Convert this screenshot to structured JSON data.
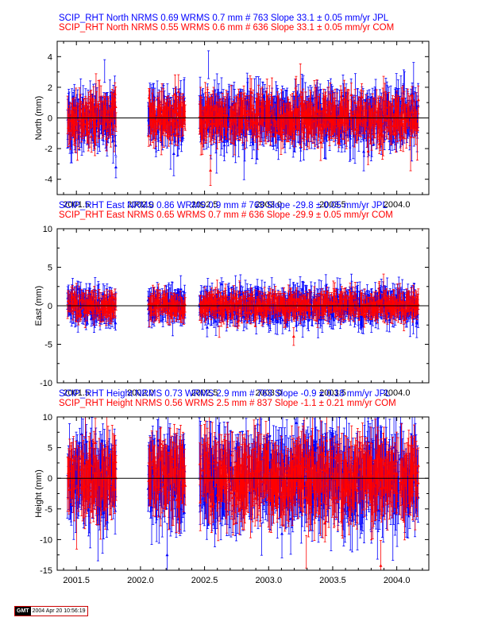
{
  "chart_data": [
    {
      "type": "scatter",
      "ylabel": "North (mm)",
      "xlim": [
        2001.35,
        2004.25
      ],
      "ylim": [
        -5,
        5
      ],
      "xticks": [
        2001.5,
        2002.0,
        2002.5,
        2003.0,
        2003.5,
        2004.0
      ],
      "xtick_labels": [
        "2001.5",
        "2002.0",
        "2002.5",
        "2003.0",
        "2003.5",
        "2004.0"
      ],
      "yticks": [
        -4,
        -2,
        0,
        2,
        4
      ],
      "ytick_labels": [
        "-4",
        "-2",
        "0",
        "2",
        "4"
      ],
      "series": [
        {
          "title": "SCIP_RHT North NRMS 0.69 WRMS  0.7 mm # 763 Slope   33.1 ±  0.05 mm/yr JPL",
          "color": "#0000ff",
          "nrms": 0.69,
          "wrms_mm": 0.7,
          "n": 763,
          "slope_mm_yr": 33.1,
          "slope_sigma": 0.05,
          "spread_mm": 0.7
        },
        {
          "title": "SCIP_RHT North NRMS 0.55 WRMS  0.6 mm # 636 Slope   33.1 ±  0.05 mm/yr COM",
          "color": "#ff0000",
          "nrms": 0.55,
          "wrms_mm": 0.6,
          "n": 636,
          "slope_mm_yr": 33.1,
          "slope_sigma": 0.05,
          "spread_mm": 0.6
        }
      ]
    },
    {
      "type": "scatter",
      "ylabel": "East (mm)",
      "xlim": [
        2001.35,
        2004.25
      ],
      "ylim": [
        -10,
        10
      ],
      "xticks": [
        2001.5,
        2002.0,
        2002.5,
        2003.0,
        2003.5,
        2004.0
      ],
      "xtick_labels": [
        "2001.5",
        "2002.0",
        "2002.5",
        "2003.0",
        "2003.5",
        "2004.0"
      ],
      "yticks": [
        -10,
        -5,
        0,
        5,
        10
      ],
      "ytick_labels": [
        "-10",
        "-5",
        "0",
        "5",
        "10"
      ],
      "series": [
        {
          "title": "SCIP_RHT East NRMS 0.86 WRMS  0.9 mm # 763 Slope  -29.8 ±  0.05 mm/yr JPL",
          "color": "#0000ff",
          "nrms": 0.86,
          "wrms_mm": 0.9,
          "n": 763,
          "slope_mm_yr": -29.8,
          "slope_sigma": 0.05,
          "spread_mm": 0.9
        },
        {
          "title": "SCIP_RHT East NRMS 0.65 WRMS  0.7 mm # 636 Slope  -29.9 ±  0.05 mm/yr COM",
          "color": "#ff0000",
          "nrms": 0.65,
          "wrms_mm": 0.7,
          "n": 636,
          "slope_mm_yr": -29.9,
          "slope_sigma": 0.05,
          "spread_mm": 0.7
        }
      ]
    },
    {
      "type": "scatter",
      "ylabel": "Height (mm)",
      "xlim": [
        2001.35,
        2004.25
      ],
      "ylim": [
        -15,
        10
      ],
      "xticks": [
        2001.5,
        2002.0,
        2002.5,
        2003.0,
        2003.5,
        2004.0
      ],
      "xtick_labels": [
        "2001.5",
        "2002.0",
        "2002.5",
        "2003.0",
        "2003.5",
        "2004.0"
      ],
      "yticks": [
        -15,
        -10,
        -5,
        0,
        5,
        10
      ],
      "ytick_labels": [
        "-15",
        "-10",
        "-5",
        "0",
        "5",
        "10"
      ],
      "series": [
        {
          "title": "SCIP_RHT Height NRMS 0.73 WRMS  2.9 mm # 763 Slope   -0.9 ±  0.18 mm/yr JPL",
          "color": "#0000ff",
          "nrms": 0.73,
          "wrms_mm": 2.9,
          "n": 763,
          "slope_mm_yr": -0.9,
          "slope_sigma": 0.18,
          "spread_mm": 2.9
        },
        {
          "title": "SCIP_RHT Height NRMS 0.56 WRMS  2.5 mm # 837 Slope   -1.1 ±  0.21 mm/yr COM",
          "color": "#ff0000",
          "nrms": 0.56,
          "wrms_mm": 2.5,
          "n": 837,
          "slope_mm_yr": -1.1,
          "slope_sigma": 0.21,
          "spread_mm": 2.5
        }
      ]
    }
  ],
  "data_segments": [
    [
      2001.43,
      2001.81
    ],
    [
      2002.06,
      2002.35
    ],
    [
      2002.46,
      2004.17
    ]
  ],
  "footer": {
    "logo": "GMT",
    "timestamp": "2004 Apr 20 10:56:19"
  }
}
